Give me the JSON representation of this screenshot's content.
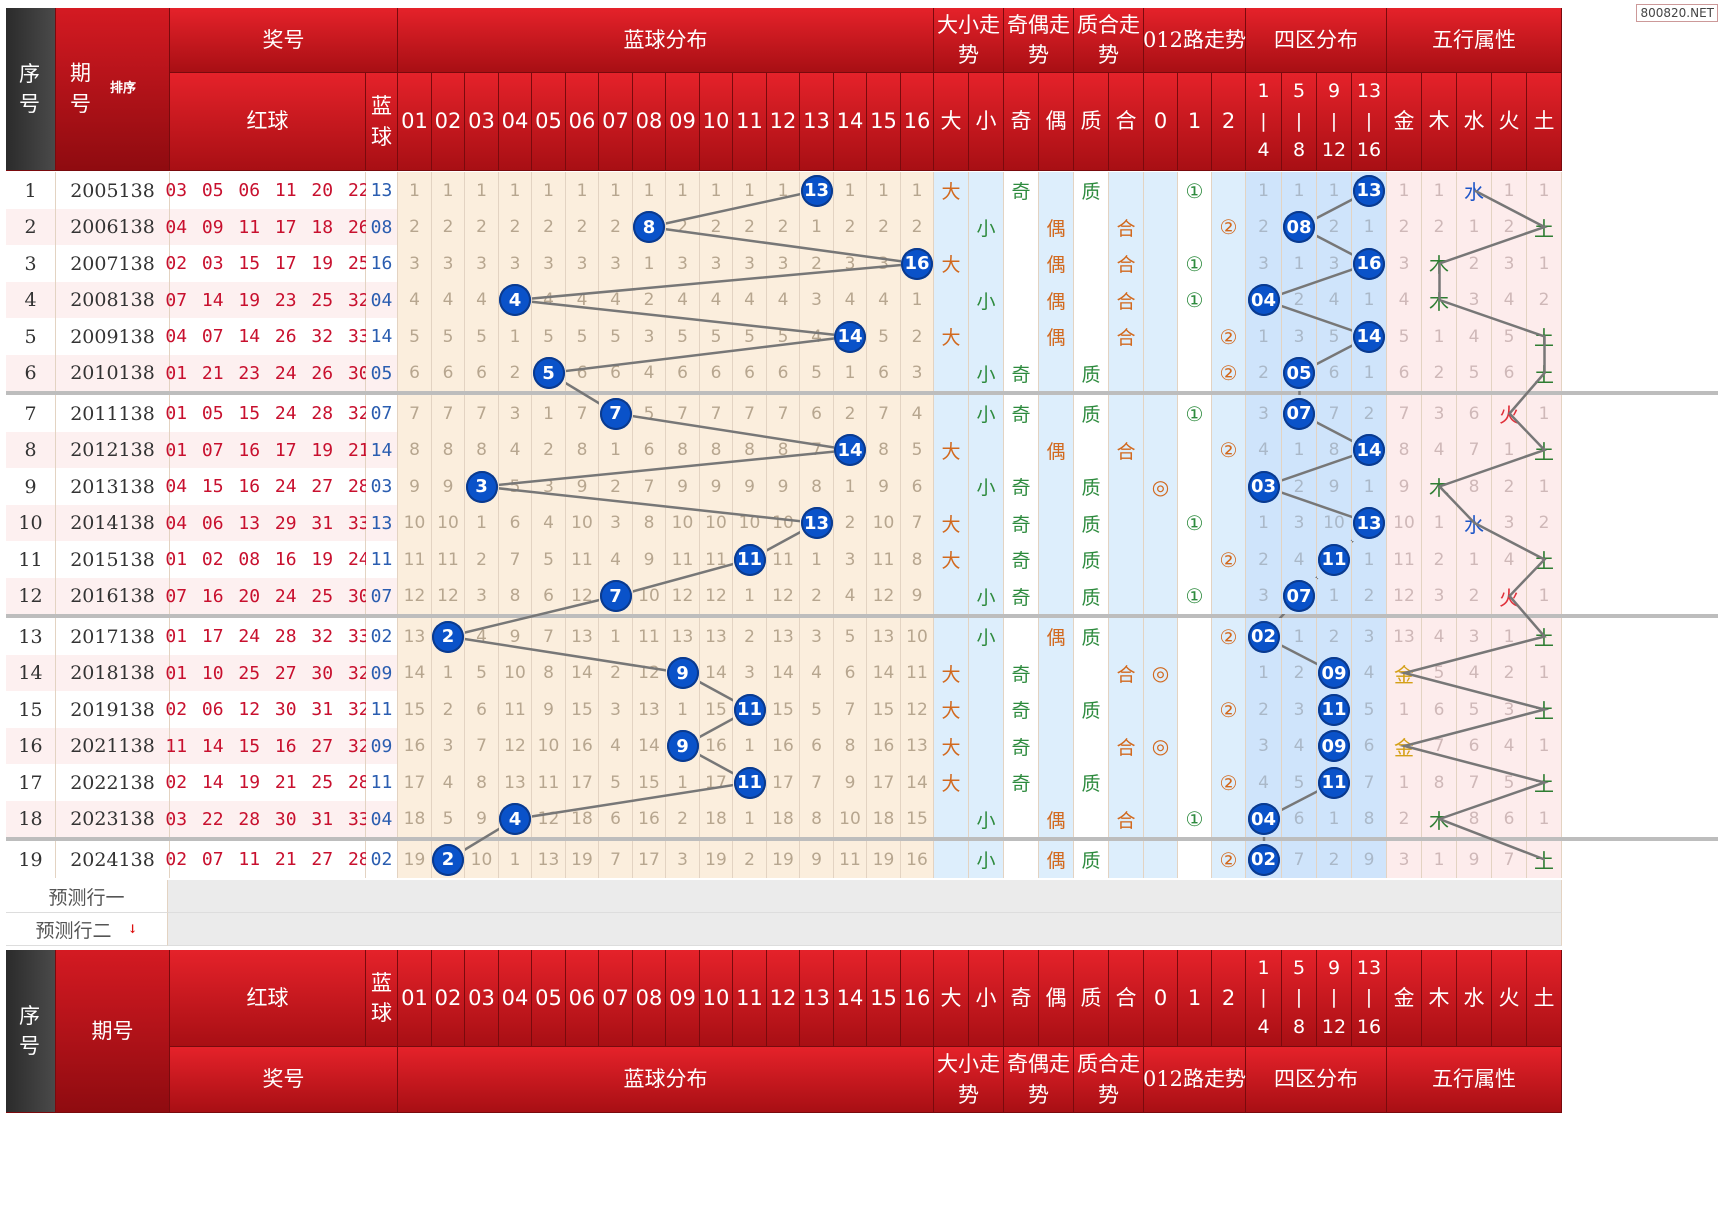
{
  "watermark": "800820.NET",
  "header": {
    "seq": "序号",
    "issue": "期号",
    "sort": "排序",
    "prize": "奖号",
    "blue_dist": "蓝球分布",
    "big_small": "大小走势",
    "odd_even": "奇偶走势",
    "prime_comp": "质合走势",
    "road012": "012路走势",
    "four_zone": "四区分布",
    "five_elem": "五行属性",
    "red_ball": "红球",
    "blue_ball": "蓝球",
    "nums": [
      "01",
      "02",
      "03",
      "04",
      "05",
      "06",
      "07",
      "08",
      "09",
      "10",
      "11",
      "12",
      "13",
      "14",
      "15",
      "16"
    ],
    "bs": [
      "大",
      "小"
    ],
    "oe": [
      "奇",
      "偶"
    ],
    "pc": [
      "质",
      "合"
    ],
    "r012": [
      "0",
      "1",
      "2"
    ],
    "zones": [
      "1|4",
      "5|8",
      "9|12",
      "13|16"
    ],
    "elems": [
      "金",
      "木",
      "水",
      "火",
      "土"
    ]
  },
  "rows": [
    {
      "seq": "1",
      "issue": "2005138",
      "red": "03 05 06 11 20 22",
      "blue": "13",
      "miss": [
        1,
        1,
        1,
        1,
        1,
        1,
        1,
        1,
        1,
        1,
        1,
        1,
        13,
        1,
        1,
        1
      ],
      "bs": "大",
      "oe": "奇",
      "pc": "质",
      "r": "①",
      "zone": [
        1,
        1,
        1,
        "13"
      ],
      "elem": [
        1,
        1,
        "水",
        1,
        1
      ]
    },
    {
      "seq": "2",
      "issue": "2006138",
      "red": "04 09 11 17 18 26",
      "blue": "08",
      "miss": [
        2,
        2,
        2,
        2,
        2,
        2,
        2,
        8,
        2,
        2,
        2,
        2,
        1,
        2,
        2,
        2
      ],
      "bs": "小",
      "oe": "偶",
      "pc": "合",
      "r": "②",
      "zone": [
        2,
        "08",
        2,
        1
      ],
      "elem": [
        2,
        2,
        1,
        2,
        "土"
      ]
    },
    {
      "seq": "3",
      "issue": "2007138",
      "red": "02 03 15 17 19 25",
      "blue": "16",
      "miss": [
        3,
        3,
        3,
        3,
        3,
        3,
        3,
        1,
        3,
        3,
        3,
        3,
        2,
        3,
        3,
        16
      ],
      "bs": "大",
      "oe": "偶",
      "pc": "合",
      "r": "①",
      "zone": [
        3,
        1,
        3,
        "16"
      ],
      "elem": [
        3,
        "木",
        2,
        3,
        1
      ]
    },
    {
      "seq": "4",
      "issue": "2008138",
      "red": "07 14 19 23 25 32",
      "blue": "04",
      "miss": [
        4,
        4,
        4,
        4,
        4,
        4,
        4,
        2,
        4,
        4,
        4,
        4,
        3,
        4,
        4,
        1
      ],
      "bs": "小",
      "oe": "偶",
      "pc": "合",
      "r": "①",
      "zone": [
        "04",
        2,
        4,
        1
      ],
      "elem": [
        4,
        "木",
        3,
        4,
        2
      ]
    },
    {
      "seq": "5",
      "issue": "2009138",
      "red": "04 07 14 26 32 33",
      "blue": "14",
      "miss": [
        5,
        5,
        5,
        1,
        5,
        5,
        5,
        3,
        5,
        5,
        5,
        5,
        4,
        14,
        5,
        2
      ],
      "bs": "大",
      "oe": "偶",
      "pc": "合",
      "r": "②",
      "zone": [
        1,
        3,
        5,
        "14"
      ],
      "elem": [
        5,
        1,
        4,
        5,
        "土"
      ]
    },
    {
      "seq": "6",
      "issue": "2010138",
      "red": "01 21 23 24 26 30",
      "blue": "05",
      "miss": [
        6,
        6,
        6,
        2,
        5,
        6,
        6,
        4,
        6,
        6,
        6,
        6,
        5,
        1,
        6,
        3
      ],
      "bs": "小",
      "oe": "奇",
      "pc": "质",
      "r": "②",
      "zone": [
        2,
        "05",
        6,
        1
      ],
      "elem": [
        6,
        2,
        5,
        6,
        "土"
      ]
    },
    {
      "seq": "7",
      "issue": "2011138",
      "red": "01 05 15 24 28 32",
      "blue": "07",
      "miss": [
        7,
        7,
        7,
        3,
        1,
        7,
        7,
        5,
        7,
        7,
        7,
        7,
        6,
        2,
        7,
        4
      ],
      "bs": "小",
      "oe": "奇",
      "pc": "质",
      "r": "①",
      "zone": [
        3,
        "07",
        7,
        2
      ],
      "elem": [
        7,
        3,
        6,
        "火",
        1
      ]
    },
    {
      "seq": "8",
      "issue": "2012138",
      "red": "01 07 16 17 19 21",
      "blue": "14",
      "miss": [
        8,
        8,
        8,
        4,
        2,
        8,
        1,
        6,
        8,
        8,
        8,
        8,
        7,
        14,
        8,
        5
      ],
      "bs": "大",
      "oe": "偶",
      "pc": "合",
      "r": "②",
      "zone": [
        4,
        1,
        8,
        "14"
      ],
      "elem": [
        8,
        4,
        7,
        1,
        "土"
      ]
    },
    {
      "seq": "9",
      "issue": "2013138",
      "red": "04 15 16 24 27 28",
      "blue": "03",
      "miss": [
        9,
        9,
        3,
        5,
        3,
        9,
        2,
        7,
        9,
        9,
        9,
        9,
        8,
        1,
        9,
        6
      ],
      "bs": "小",
      "oe": "奇",
      "pc": "质",
      "r": "◎",
      "zone": [
        "03",
        2,
        9,
        1
      ],
      "elem": [
        9,
        "木",
        8,
        2,
        1
      ]
    },
    {
      "seq": "10",
      "issue": "2014138",
      "red": "04 06 13 29 31 33",
      "blue": "13",
      "miss": [
        10,
        10,
        1,
        6,
        4,
        10,
        3,
        8,
        10,
        10,
        10,
        10,
        13,
        2,
        10,
        7
      ],
      "bs": "大",
      "oe": "奇",
      "pc": "质",
      "r": "①",
      "zone": [
        1,
        3,
        10,
        "13"
      ],
      "elem": [
        10,
        1,
        "水",
        3,
        2
      ]
    },
    {
      "seq": "11",
      "issue": "2015138",
      "red": "01 02 08 16 19 24",
      "blue": "11",
      "miss": [
        11,
        11,
        2,
        7,
        5,
        11,
        4,
        9,
        11,
        11,
        11,
        11,
        1,
        3,
        11,
        8
      ],
      "bs": "大",
      "oe": "奇",
      "pc": "质",
      "r": "②",
      "zone": [
        2,
        4,
        "11",
        1
      ],
      "elem": [
        11,
        2,
        1,
        4,
        "土"
      ]
    },
    {
      "seq": "12",
      "issue": "2016138",
      "red": "07 16 20 24 25 30",
      "blue": "07",
      "miss": [
        12,
        12,
        3,
        8,
        6,
        12,
        7,
        10,
        12,
        12,
        1,
        12,
        2,
        4,
        12,
        9
      ],
      "bs": "小",
      "oe": "奇",
      "pc": "质",
      "r": "①",
      "zone": [
        3,
        "07",
        1,
        2
      ],
      "elem": [
        12,
        3,
        2,
        "火",
        1
      ]
    },
    {
      "seq": "13",
      "issue": "2017138",
      "red": "01 17 24 28 32 33",
      "blue": "02",
      "miss": [
        13,
        2,
        4,
        9,
        7,
        13,
        1,
        11,
        13,
        13,
        2,
        13,
        3,
        5,
        13,
        10
      ],
      "bs": "小",
      "oe": "偶",
      "pc": "质",
      "r": "②",
      "zone": [
        "02",
        1,
        2,
        3
      ],
      "elem": [
        13,
        4,
        3,
        1,
        "土"
      ]
    },
    {
      "seq": "14",
      "issue": "2018138",
      "red": "01 10 25 27 30 32",
      "blue": "09",
      "miss": [
        14,
        1,
        5,
        10,
        8,
        14,
        2,
        12,
        9,
        14,
        3,
        14,
        4,
        6,
        14,
        11
      ],
      "bs": "大",
      "oe": "奇",
      "pc": "合",
      "r": "◎",
      "zone": [
        1,
        2,
        "09",
        4
      ],
      "elem": [
        "金",
        5,
        4,
        2,
        1
      ]
    },
    {
      "seq": "15",
      "issue": "2019138",
      "red": "02 06 12 30 31 32",
      "blue": "11",
      "miss": [
        15,
        2,
        6,
        11,
        9,
        15,
        3,
        13,
        1,
        15,
        11,
        15,
        5,
        7,
        15,
        12
      ],
      "bs": "大",
      "oe": "奇",
      "pc": "质",
      "r": "②",
      "zone": [
        2,
        3,
        "11",
        5
      ],
      "elem": [
        1,
        6,
        5,
        3,
        "土"
      ]
    },
    {
      "seq": "16",
      "issue": "2021138",
      "red": "11 14 15 16 27 32",
      "blue": "09",
      "miss": [
        16,
        3,
        7,
        12,
        10,
        16,
        4,
        14,
        9,
        16,
        1,
        16,
        6,
        8,
        16,
        13
      ],
      "bs": "大",
      "oe": "奇",
      "pc": "合",
      "r": "◎",
      "zone": [
        3,
        4,
        "09",
        6
      ],
      "elem": [
        "金",
        7,
        6,
        4,
        1
      ]
    },
    {
      "seq": "17",
      "issue": "2022138",
      "red": "02 14 19 21 25 28",
      "blue": "11",
      "miss": [
        17,
        4,
        8,
        13,
        11,
        17,
        5,
        15,
        1,
        17,
        11,
        17,
        7,
        9,
        17,
        14
      ],
      "bs": "大",
      "oe": "奇",
      "pc": "质",
      "r": "②",
      "zone": [
        4,
        5,
        "11",
        7
      ],
      "elem": [
        1,
        8,
        7,
        5,
        "土"
      ]
    },
    {
      "seq": "18",
      "issue": "2023138",
      "red": "03 22 28 30 31 33",
      "blue": "04",
      "miss": [
        18,
        5,
        9,
        4,
        12,
        18,
        6,
        16,
        2,
        18,
        1,
        18,
        8,
        10,
        18,
        15
      ],
      "bs": "小",
      "oe": "偶",
      "pc": "合",
      "r": "①",
      "zone": [
        "04",
        6,
        1,
        8
      ],
      "elem": [
        2,
        "木",
        8,
        6,
        1
      ]
    },
    {
      "seq": "19",
      "issue": "2024138",
      "red": "02 07 11 21 27 28",
      "blue": "02",
      "miss": [
        19,
        2,
        10,
        1,
        13,
        19,
        7,
        17,
        3,
        19,
        2,
        19,
        9,
        11,
        19,
        16
      ],
      "bs": "小",
      "oe": "偶",
      "pc": "质",
      "r": "②",
      "zone": [
        "02",
        7,
        2,
        9
      ],
      "elem": [
        3,
        1,
        9,
        7,
        "土"
      ]
    }
  ],
  "predict": [
    "预测行一",
    "预测行二"
  ]
}
